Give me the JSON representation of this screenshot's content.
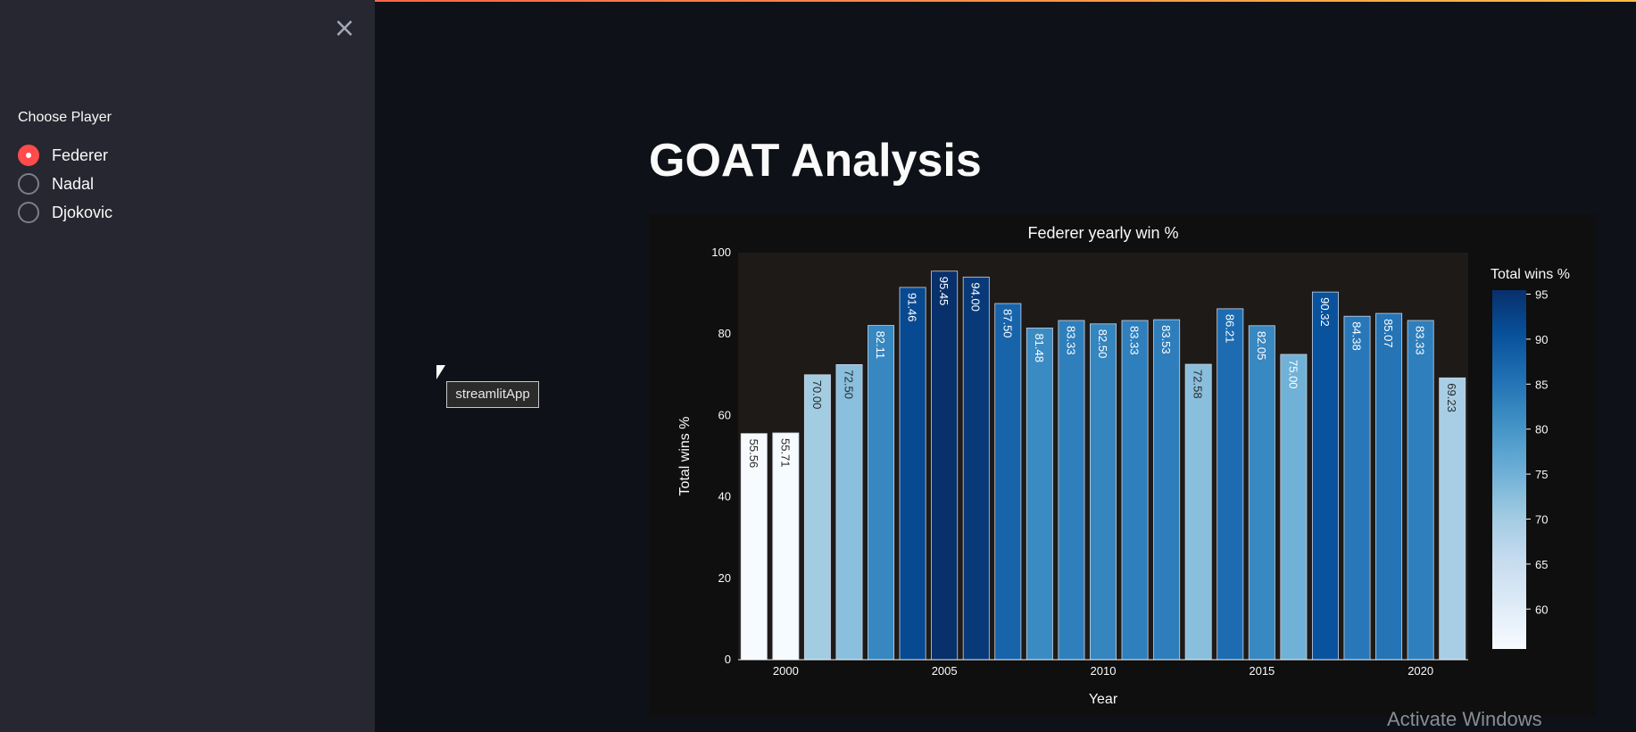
{
  "sidebar": {
    "close_icon": "×",
    "radio_label": "Choose Player",
    "options": [
      {
        "label": "Federer",
        "selected": true
      },
      {
        "label": "Nadal",
        "selected": false
      },
      {
        "label": "Djokovic",
        "selected": false
      }
    ],
    "accent_color": "#ff4b4b"
  },
  "main": {
    "title": "GOAT Analysis",
    "tooltip": "streamlitApp"
  },
  "watermark": "Activate Windows",
  "chart_data": {
    "type": "bar",
    "title": "Federer yearly win %",
    "xlabel": "Year",
    "ylabel": "Total wins %",
    "x": [
      1999,
      2000,
      2001,
      2002,
      2003,
      2004,
      2005,
      2006,
      2007,
      2008,
      2009,
      2010,
      2011,
      2012,
      2013,
      2014,
      2015,
      2016,
      2017,
      2018,
      2019,
      2020,
      2021
    ],
    "values": [
      55.56,
      55.71,
      70.0,
      72.5,
      82.11,
      91.46,
      95.45,
      94.0,
      87.5,
      81.48,
      83.33,
      82.5,
      83.33,
      83.53,
      72.58,
      86.21,
      82.05,
      75.0,
      90.32,
      84.38,
      85.07,
      83.33,
      69.23
    ],
    "value_labels": [
      "55.56",
      "55.71",
      "70.00",
      "72.50",
      "82.11",
      "91.46",
      "95.45",
      "94.00",
      "87.50",
      "81.48",
      "83.33",
      "82.50",
      "83.33",
      "83.53",
      "72.58",
      "86.21",
      "82.05",
      "75.00",
      "90.32",
      "84.38",
      "85.07",
      "83.33",
      "69.23"
    ],
    "ylim": [
      0,
      100
    ],
    "yticks": [
      0,
      20,
      40,
      60,
      80,
      100
    ],
    "xticks": [
      2000,
      2005,
      2010,
      2015,
      2020
    ],
    "colorbar": {
      "title": "Total wins %",
      "ticks": [
        60,
        65,
        70,
        75,
        80,
        85,
        90,
        95
      ],
      "colorscale": "Blues"
    },
    "grid": false,
    "plot_bg": "#1d1a18"
  }
}
